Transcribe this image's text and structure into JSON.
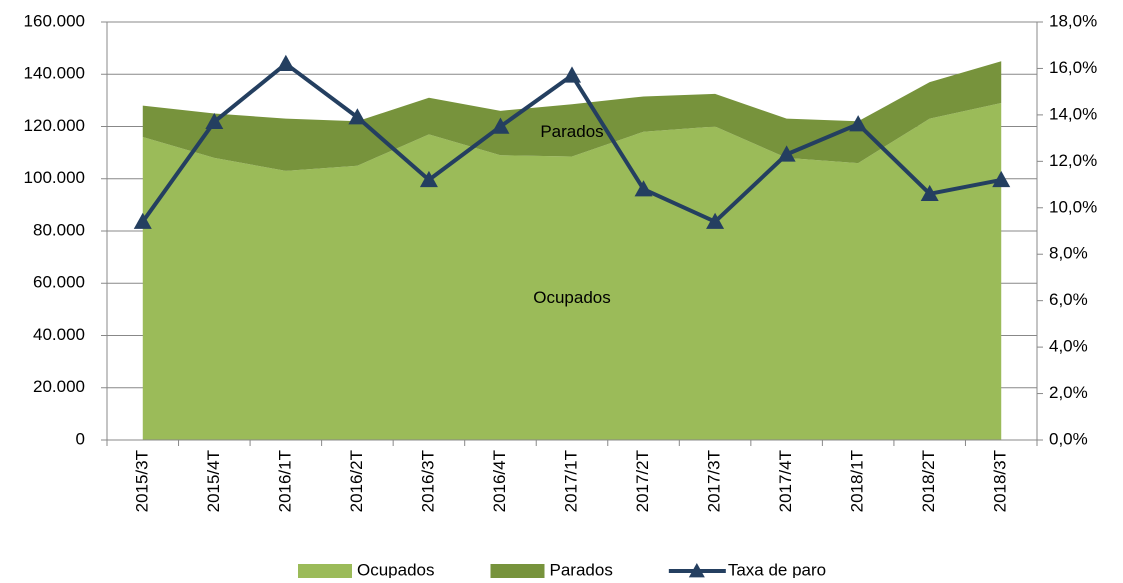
{
  "chart_data": {
    "type": "stacked-area-line",
    "categories": [
      "2015/3T",
      "2015/4T",
      "2016/1T",
      "2016/2T",
      "2016/3T",
      "2016/4T",
      "2017/1T",
      "2017/2T",
      "2017/3T",
      "2017/4T",
      "2018/1T",
      "2018/2T",
      "2018/3T"
    ],
    "series": [
      {
        "name": "Ocupados",
        "color": "#9bbb59",
        "kind": "area",
        "values": [
          116000,
          108000,
          103000,
          105000,
          117000,
          109000,
          108500,
          118000,
          120000,
          108000,
          106000,
          123000,
          129000
        ]
      },
      {
        "name": "Parados",
        "color": "#77933c",
        "kind": "area",
        "values": [
          12000,
          17000,
          20000,
          17000,
          14000,
          17000,
          20000,
          13500,
          12500,
          15000,
          16000,
          14000,
          16000
        ]
      },
      {
        "name": "Taxa de paro",
        "color": "#243f60",
        "kind": "line",
        "axis": "y2",
        "values": [
          9.4,
          13.7,
          16.2,
          13.9,
          11.2,
          13.5,
          15.7,
          10.8,
          9.4,
          12.3,
          13.6,
          10.6,
          11.2
        ]
      }
    ],
    "ylim": [
      0,
      160000
    ],
    "yticks": [
      0,
      {
        "value": 20000,
        "label": "20.000"
      },
      {
        "value": 40000,
        "label": "40.000"
      },
      {
        "value": 60000,
        "label": "60.000"
      },
      {
        "value": 80000,
        "label": "80.000"
      },
      {
        "value": 100000,
        "label": "100.000"
      },
      {
        "value": 120000,
        "label": "120.000"
      },
      {
        "value": 140000,
        "label": "140.000"
      },
      {
        "value": 160000,
        "label": "160.000"
      }
    ],
    "y2lim": [
      0,
      18
    ],
    "y2ticks": [
      {
        "value": 0,
        "label": "0,0%"
      },
      {
        "value": 2,
        "label": "2,0%"
      },
      {
        "value": 4,
        "label": "4,0%"
      },
      {
        "value": 6,
        "label": "6,0%"
      },
      {
        "value": 8,
        "label": "8,0%"
      },
      {
        "value": 10,
        "label": "10,0%"
      },
      {
        "value": 12,
        "label": "12,0%"
      },
      {
        "value": 14,
        "label": "14,0%"
      },
      {
        "value": 16,
        "label": "16,0%"
      },
      {
        "value": 18,
        "label": "18,0%"
      }
    ],
    "grid": true,
    "legend": "bottom"
  }
}
